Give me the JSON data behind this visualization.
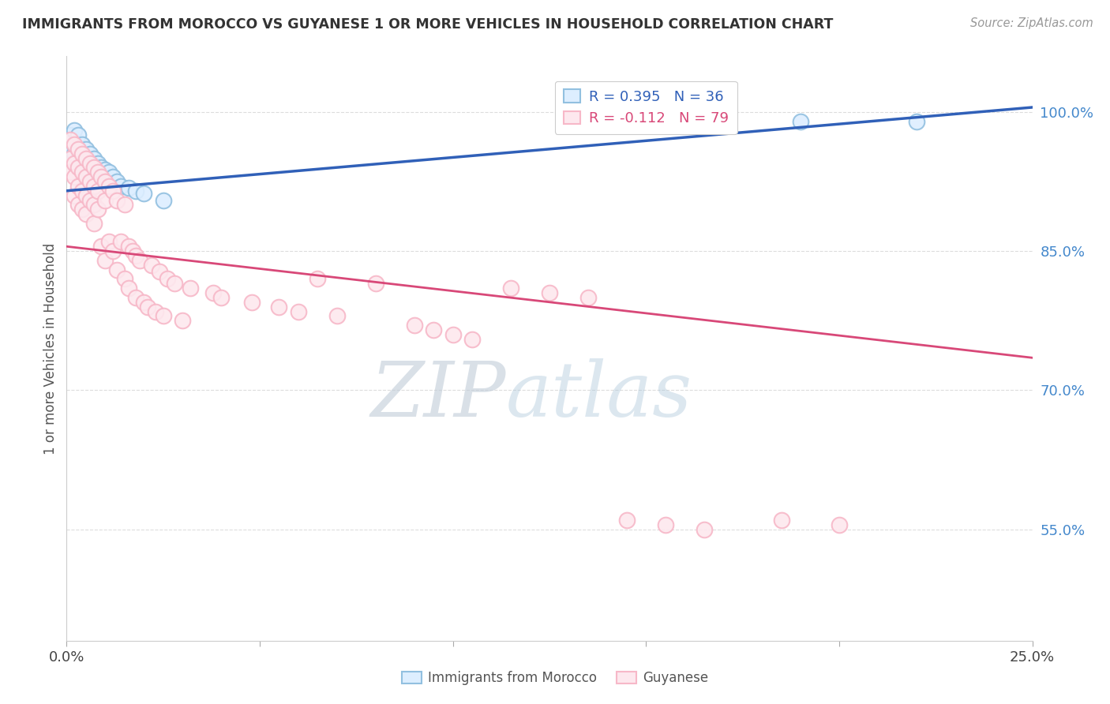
{
  "title": "IMMIGRANTS FROM MOROCCO VS GUYANESE 1 OR MORE VEHICLES IN HOUSEHOLD CORRELATION CHART",
  "source_text": "Source: ZipAtlas.com",
  "ylabel": "1 or more Vehicles in Household",
  "ytick_labels": [
    "100.0%",
    "85.0%",
    "70.0%",
    "55.0%"
  ],
  "ytick_values": [
    1.0,
    0.85,
    0.7,
    0.55
  ],
  "xlim": [
    0.0,
    0.25
  ],
  "ylim": [
    0.43,
    1.06
  ],
  "blue_R": 0.395,
  "blue_N": 36,
  "pink_R": -0.112,
  "pink_N": 79,
  "blue_color": "#92c0e0",
  "pink_color": "#f7b8c8",
  "blue_line_color": "#3060b8",
  "pink_line_color": "#d84878",
  "legend_label_blue": "Immigrants from Morocco",
  "legend_label_pink": "Guyanese",
  "blue_scatter_x": [
    0.001,
    0.001,
    0.002,
    0.002,
    0.002,
    0.003,
    0.003,
    0.003,
    0.003,
    0.004,
    0.004,
    0.004,
    0.005,
    0.005,
    0.005,
    0.006,
    0.006,
    0.006,
    0.007,
    0.007,
    0.008,
    0.008,
    0.009,
    0.009,
    0.01,
    0.01,
    0.011,
    0.012,
    0.013,
    0.014,
    0.016,
    0.018,
    0.02,
    0.025,
    0.19,
    0.22
  ],
  "blue_scatter_y": [
    0.975,
    0.96,
    0.98,
    0.965,
    0.955,
    0.975,
    0.96,
    0.95,
    0.94,
    0.965,
    0.955,
    0.945,
    0.96,
    0.95,
    0.94,
    0.955,
    0.945,
    0.935,
    0.95,
    0.94,
    0.945,
    0.935,
    0.94,
    0.93,
    0.938,
    0.928,
    0.935,
    0.93,
    0.925,
    0.92,
    0.918,
    0.915,
    0.912,
    0.905,
    0.99,
    0.99
  ],
  "pink_scatter_x": [
    0.001,
    0.001,
    0.001,
    0.002,
    0.002,
    0.002,
    0.002,
    0.003,
    0.003,
    0.003,
    0.003,
    0.004,
    0.004,
    0.004,
    0.004,
    0.005,
    0.005,
    0.005,
    0.005,
    0.006,
    0.006,
    0.006,
    0.007,
    0.007,
    0.007,
    0.007,
    0.008,
    0.008,
    0.008,
    0.009,
    0.009,
    0.01,
    0.01,
    0.01,
    0.011,
    0.011,
    0.012,
    0.012,
    0.013,
    0.013,
    0.014,
    0.015,
    0.015,
    0.016,
    0.016,
    0.017,
    0.018,
    0.018,
    0.019,
    0.02,
    0.021,
    0.022,
    0.023,
    0.024,
    0.025,
    0.026,
    0.028,
    0.03,
    0.032,
    0.038,
    0.04,
    0.048,
    0.055,
    0.06,
    0.065,
    0.07,
    0.08,
    0.09,
    0.095,
    0.1,
    0.105,
    0.115,
    0.125,
    0.135,
    0.145,
    0.155,
    0.165,
    0.185,
    0.2
  ],
  "pink_scatter_y": [
    0.97,
    0.95,
    0.935,
    0.965,
    0.945,
    0.93,
    0.91,
    0.96,
    0.94,
    0.92,
    0.9,
    0.955,
    0.935,
    0.915,
    0.895,
    0.95,
    0.93,
    0.91,
    0.89,
    0.945,
    0.925,
    0.905,
    0.94,
    0.92,
    0.9,
    0.88,
    0.935,
    0.915,
    0.895,
    0.93,
    0.855,
    0.925,
    0.905,
    0.84,
    0.92,
    0.86,
    0.915,
    0.85,
    0.905,
    0.83,
    0.86,
    0.9,
    0.82,
    0.855,
    0.81,
    0.85,
    0.845,
    0.8,
    0.84,
    0.795,
    0.79,
    0.835,
    0.785,
    0.828,
    0.78,
    0.82,
    0.815,
    0.775,
    0.81,
    0.805,
    0.8,
    0.795,
    0.79,
    0.785,
    0.82,
    0.78,
    0.815,
    0.77,
    0.765,
    0.76,
    0.755,
    0.81,
    0.805,
    0.8,
    0.56,
    0.555,
    0.55,
    0.56,
    0.555
  ],
  "background_color": "#ffffff",
  "grid_color": "#dddddd"
}
